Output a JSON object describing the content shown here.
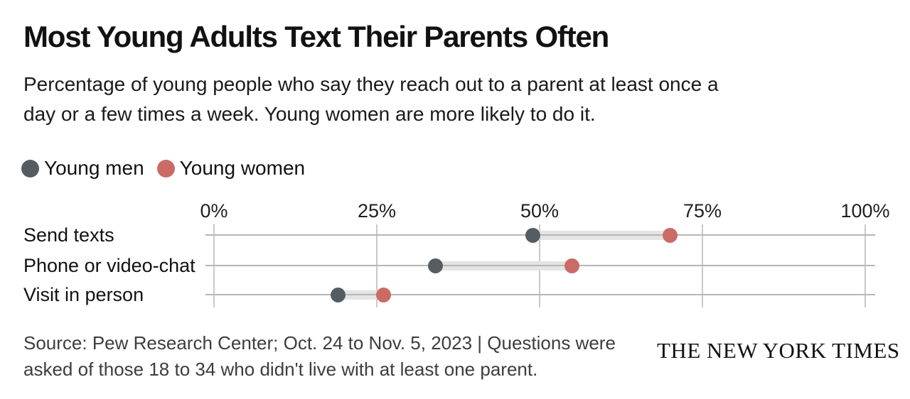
{
  "title": "Most Young Adults Text Their Parents Often",
  "subtitle_lines": [
    "Percentage of young people who say they reach out to a parent at least once a",
    "day or a few times a week. Young women are more likely to do it."
  ],
  "legend": {
    "items": [
      {
        "label": "Young men",
        "color": "#555d63"
      },
      {
        "label": "Young women",
        "color": "#ca6b66"
      }
    ]
  },
  "chart_data": {
    "type": "scatter",
    "variant": "dumbbell-dot-plot",
    "categories": [
      "Send texts",
      "Phone or video-chat",
      "Visit in person"
    ],
    "series": [
      {
        "name": "Young men",
        "color": "#555d63",
        "values": [
          49,
          34,
          19
        ]
      },
      {
        "name": "Young women",
        "color": "#ca6b66",
        "values": [
          70,
          55,
          26
        ]
      }
    ],
    "unit": "percent",
    "xlim": [
      0,
      100
    ],
    "x_ticks": [
      {
        "value": 0,
        "label": "0%"
      },
      {
        "value": 25,
        "label": "25%"
      },
      {
        "value": 50,
        "label": "50%"
      },
      {
        "value": 75,
        "label": "75%"
      },
      {
        "value": 100,
        "label": "100%"
      }
    ],
    "grid": {
      "vertical": true,
      "horizontal_row_lines": true
    },
    "legend_position": "top-left",
    "connector_color": "#e4e4e4",
    "gridline_color": "#c9c9c9",
    "row_line_color": "#b6b6b6"
  },
  "source_lines": [
    "Source: Pew Research Center; Oct. 24 to Nov. 5, 2023 | Questions were",
    "asked of those 18 to 34 who didn't live with at least one parent."
  ],
  "footer": {
    "logo_text": "THE NEW YORK TIMES"
  }
}
